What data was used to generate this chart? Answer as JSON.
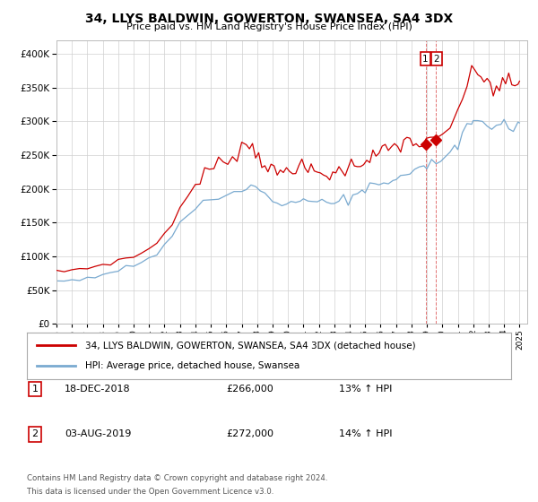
{
  "title": "34, LLYS BALDWIN, GOWERTON, SWANSEA, SA4 3DX",
  "subtitle": "Price paid vs. HM Land Registry's House Price Index (HPI)",
  "ytick_values": [
    0,
    50000,
    100000,
    150000,
    200000,
    250000,
    300000,
    350000,
    400000
  ],
  "ylim": [
    0,
    420000
  ],
  "legend_line1": "34, LLYS BALDWIN, GOWERTON, SWANSEA, SA4 3DX (detached house)",
  "legend_line2": "HPI: Average price, detached house, Swansea",
  "annotation1_label": "1",
  "annotation1_date": "18-DEC-2018",
  "annotation1_price": "£266,000",
  "annotation1_hpi": "13% ↑ HPI",
  "annotation2_label": "2",
  "annotation2_date": "03-AUG-2019",
  "annotation2_price": "£272,000",
  "annotation2_hpi": "14% ↑ HPI",
  "footnote1": "Contains HM Land Registry data © Crown copyright and database right 2024.",
  "footnote2": "This data is licensed under the Open Government Licence v3.0.",
  "sale1_x": 2018.96,
  "sale1_y": 266000,
  "sale2_x": 2019.58,
  "sale2_y": 272000,
  "red_color": "#cc0000",
  "blue_color": "#7aaad0",
  "xlim_start": 1995.0,
  "xlim_end": 2025.5,
  "xticks": [
    1995,
    1996,
    1997,
    1998,
    1999,
    2000,
    2001,
    2002,
    2003,
    2004,
    2005,
    2006,
    2007,
    2008,
    2009,
    2010,
    2011,
    2012,
    2013,
    2014,
    2015,
    2016,
    2017,
    2018,
    2019,
    2020,
    2021,
    2022,
    2023,
    2024,
    2025
  ]
}
